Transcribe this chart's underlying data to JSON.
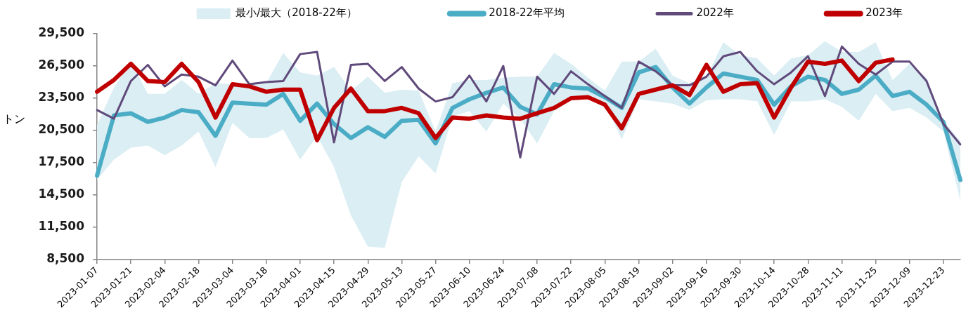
{
  "chart_data": {
    "type": "line",
    "ylabel": "トン",
    "categories": [
      "2023-01-07",
      null,
      "2023-01-21",
      null,
      "2023-02-04",
      null,
      "2023-02-18",
      null,
      "2023-03-04",
      null,
      "2023-03-18",
      null,
      "2023-04-01",
      null,
      "2023-04-15",
      null,
      "2023-04-29",
      null,
      "2023-05-13",
      null,
      "2023-05-27",
      null,
      "2023-06-10",
      null,
      "2023-06-24",
      null,
      "2023-07-08",
      null,
      "2023-07-22",
      null,
      "2023-08-05",
      null,
      "2023-08-19",
      null,
      "2023-09-02",
      null,
      "2023-09-16",
      null,
      "2023-09-30",
      null,
      "2023-10-14",
      null,
      "2023-10-28",
      null,
      "2023-11-11",
      null,
      "2023-11-25",
      null,
      "2023-12-09",
      null,
      "2023-12-23",
      null
    ],
    "series": [
      {
        "name": "最小/最大（2018-22年）",
        "color": "#daeef3",
        "values": [
          null,
          null,
          null,
          null,
          null,
          null,
          null,
          null,
          null,
          null,
          null,
          null,
          null,
          null,
          null,
          null,
          null,
          null,
          null,
          null,
          null,
          null,
          null,
          null,
          null,
          null,
          null,
          null,
          null,
          null,
          null,
          null,
          null,
          null,
          null,
          null,
          null,
          null,
          null,
          null,
          null,
          null,
          null,
          null,
          null,
          null,
          null,
          null,
          null,
          null,
          null,
          null
        ],
        "lower": [
          15900,
          17800,
          18900,
          19100,
          18200,
          19100,
          20400,
          17100,
          21200,
          19800,
          19800,
          20600,
          17800,
          20000,
          17100,
          12600,
          9700,
          9600,
          15700,
          18100,
          16500,
          21800,
          22300,
          20400,
          23000,
          21600,
          19300,
          22300,
          23300,
          23600,
          23000,
          19700,
          23400,
          23200,
          23000,
          22400,
          23300,
          23400,
          23400,
          23200,
          20100,
          23200,
          23200,
          23400,
          22700,
          21400,
          23900,
          22300,
          22600,
          21700,
          20400,
          14000
        ],
        "upper": [
          21000,
          24500,
          26900,
          23900,
          23900,
          25200,
          23900,
          24900,
          24800,
          24900,
          24900,
          27700,
          25900,
          25600,
          26400,
          24200,
          25500,
          24000,
          24300,
          24200,
          20400,
          24900,
          25200,
          25200,
          25400,
          25500,
          25500,
          27700,
          26700,
          25400,
          24200,
          26900,
          26900,
          28100,
          25600,
          24900,
          25500,
          28700,
          27500,
          27200,
          25600,
          27200,
          27500,
          28800,
          27800,
          27800,
          28700,
          25200,
          26700,
          25400,
          21400,
          19500
        ]
      },
      {
        "name": "2018-22年平均",
        "color": "#4bacc6",
        "values": [
          16300,
          21900,
          22100,
          21300,
          21700,
          22400,
          22200,
          20000,
          23100,
          23000,
          22900,
          23900,
          21400,
          23000,
          21100,
          19800,
          20800,
          19900,
          21400,
          21500,
          19300,
          22600,
          23400,
          24000,
          24500,
          22700,
          22000,
          24800,
          24500,
          24400,
          23600,
          22600,
          25900,
          26400,
          24500,
          23000,
          24500,
          25800,
          25500,
          25200,
          22900,
          24600,
          25500,
          25200,
          23900,
          24300,
          25600,
          23700,
          24100,
          22900,
          21300,
          15900
        ]
      },
      {
        "name": "2022年",
        "color": "#604a7b",
        "values": [
          22400,
          21600,
          25100,
          26600,
          24600,
          25700,
          25500,
          24700,
          27000,
          24800,
          25000,
          25100,
          27600,
          27800,
          19400,
          26600,
          26700,
          25100,
          26400,
          24400,
          23200,
          23600,
          25600,
          23200,
          26500,
          18000,
          25500,
          23900,
          26000,
          24800,
          23700,
          22600,
          26900,
          26000,
          24700,
          24700,
          25500,
          27400,
          27800,
          26000,
          24800,
          25900,
          27400,
          23700,
          28300,
          26700,
          25700,
          26900,
          26900,
          25100,
          21100,
          19200
        ]
      },
      {
        "name": "2023年",
        "color": "#c00000",
        "values": [
          24100,
          25200,
          26700,
          25100,
          25000,
          26700,
          25000,
          21700,
          24800,
          24600,
          24100,
          24300,
          24300,
          19600,
          22600,
          24400,
          22300,
          22300,
          22600,
          22100,
          19800,
          21700,
          21600,
          21900,
          21700,
          21600,
          22100,
          22600,
          23500,
          23600,
          22900,
          20700,
          23900,
          24300,
          24700,
          23800,
          26600,
          24100,
          24800,
          24900,
          21700,
          24500,
          26900,
          26700,
          27000,
          25100,
          26800,
          27100,
          null,
          null,
          null,
          null
        ]
      }
    ],
    "ylim": [
      8500,
      29500
    ],
    "yticks": [
      {
        "value": 8500,
        "label": "8,500"
      },
      {
        "value": 11500,
        "label": "11,500"
      },
      {
        "value": 14500,
        "label": "14,500"
      },
      {
        "value": 17500,
        "label": "17,500"
      },
      {
        "value": 20500,
        "label": "20,500"
      },
      {
        "value": 23500,
        "label": "23,500"
      },
      {
        "value": 26500,
        "label": "26,500"
      },
      {
        "value": 29500,
        "label": "29,500"
      }
    ],
    "legend": "top",
    "grid": false
  }
}
